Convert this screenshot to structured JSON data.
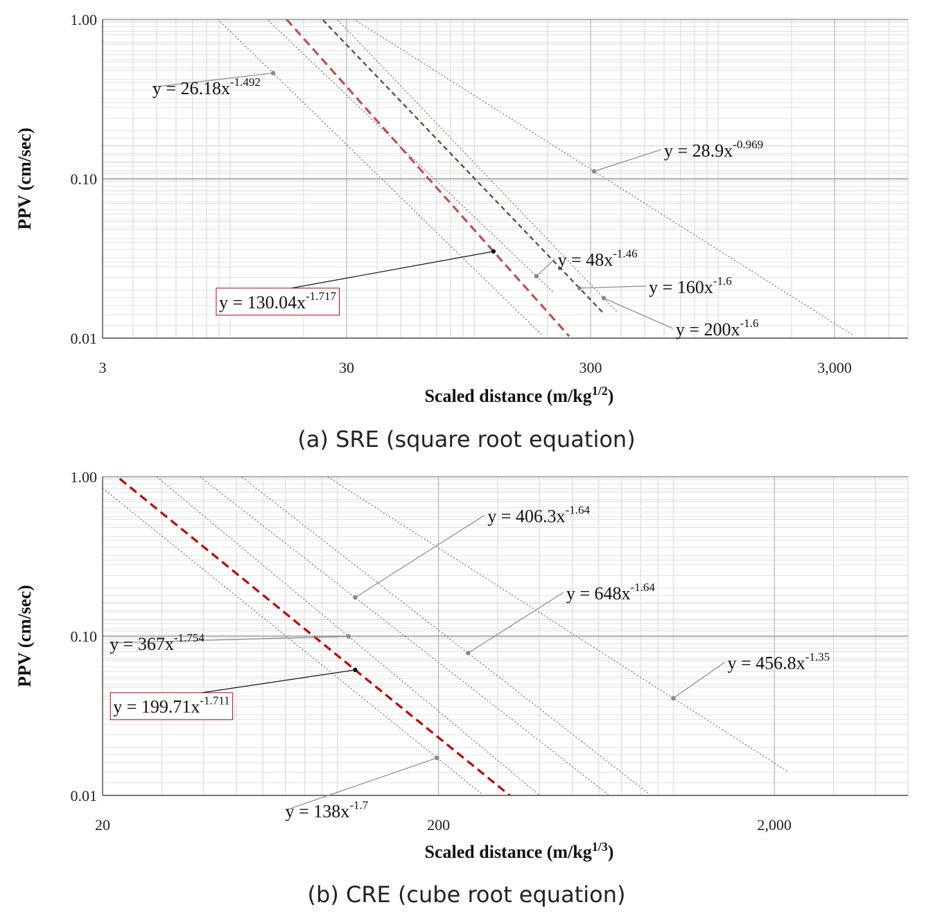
{
  "chart_data": [
    {
      "type": "line",
      "x_scale": "log",
      "y_scale": "log",
      "xlabel_main": "Scaled distance  (m/kg",
      "xlabel_exp": "1/2",
      "xlabel_end": ")",
      "ylabel": "PPV  (cm/sec)",
      "caption": "(a) SRE (square root equation)",
      "xlim": [
        3,
        6000
      ],
      "ylim": [
        0.01,
        1.0
      ],
      "x_ticks": [
        3,
        30,
        300,
        3000
      ],
      "x_tick_labels": [
        "3",
        "30",
        "300",
        "3,000"
      ],
      "y_ticks": [
        0.01,
        0.1,
        1.0
      ],
      "y_tick_labels": [
        "0.01",
        "0.10",
        "1.00"
      ],
      "series": [
        {
          "equation": "y = 26.18x",
          "exponent": "-1.492",
          "a": 26.18,
          "b": -1.492,
          "x_range": [
            8.9,
            190
          ],
          "marker_x": 15,
          "label_x": 4.8,
          "label_y": 0.34,
          "highlight": false
        },
        {
          "equation": "y = 130.04x",
          "exponent": "-1.717",
          "a": 130.04,
          "b": -1.717,
          "x_range": [
            17,
            245
          ],
          "marker_x": 120,
          "label_x": 9,
          "label_y": 0.0154,
          "highlight": true
        },
        {
          "equation": "y = 48x",
          "exponent": "-1.46",
          "a": 48,
          "b": -1.46,
          "x_range": [
            14,
            210
          ],
          "marker_x": 180,
          "label_x": 220,
          "label_y": 0.0285,
          "highlight": false
        },
        {
          "equation": "y = 160x",
          "exponent": "-1.6",
          "a": 160,
          "b": -1.6,
          "x_range": [
            24,
            340
          ],
          "marker_x": 270,
          "label_x": 520,
          "label_y": 0.0192,
          "highlight": false,
          "dashed_dark": true
        },
        {
          "equation": "y = 200x",
          "exponent": "-1.6",
          "a": 200,
          "b": -1.6,
          "x_range": [
            27,
            385
          ],
          "marker_x": 340,
          "label_x": 670,
          "label_y": 0.0104,
          "highlight": false
        },
        {
          "equation": "y = 28.9x",
          "exponent": "-0.969",
          "a": 28.9,
          "b": -0.969,
          "x_range": [
            32,
            3600
          ],
          "marker_x": 310,
          "label_x": 600,
          "label_y": 0.138,
          "highlight": false
        }
      ]
    },
    {
      "type": "line",
      "x_scale": "log",
      "y_scale": "log",
      "xlabel_main": "Scaled distance  (m/kg",
      "xlabel_exp": "1/3",
      "xlabel_end": ")",
      "ylabel": "PPV  (cm/sec)",
      "caption": "(b) CRE (cube root equation)",
      "xlim": [
        20,
        5000
      ],
      "ylim": [
        0.01,
        1.0
      ],
      "x_ticks": [
        20,
        200,
        2000
      ],
      "x_tick_labels": [
        "20",
        "200",
        "2,000"
      ],
      "y_ticks": [
        0.01,
        0.1,
        1.0
      ],
      "y_tick_labels": [
        "0.01",
        "0.10",
        "1.00"
      ],
      "series": [
        {
          "equation": "y = 138x",
          "exponent": "-1.7",
          "a": 138,
          "b": -1.7,
          "x_range": [
            20,
            270
          ],
          "marker_x": 198,
          "label_x": 70,
          "label_y": 0.0073,
          "highlight": false
        },
        {
          "equation": "y = 199.71x",
          "exponent": "-1.711",
          "a": 199.71,
          "b": -1.711,
          "x_range": [
            22.5,
            330
          ],
          "marker_x": 113,
          "label_x": 21.5,
          "label_y": 0.033,
          "highlight": true
        },
        {
          "equation": "y = 367x",
          "exponent": "-1.754",
          "a": 367,
          "b": -1.754,
          "x_range": [
            29,
            405
          ],
          "marker_x": 108,
          "label_x": 21,
          "label_y": 0.082,
          "highlight": false
        },
        {
          "equation": "y = 406.3x",
          "exponent": "-1.64",
          "a": 406.3,
          "b": -1.64,
          "x_range": [
            39,
            640
          ],
          "marker_x": 113,
          "label_x": 280,
          "label_y": 0.52,
          "highlight": false
        },
        {
          "equation": "y = 648x",
          "exponent": "-1.64",
          "a": 648,
          "b": -1.64,
          "x_range": [
            52,
            850
          ],
          "marker_x": 245,
          "label_x": 480,
          "label_y": 0.17,
          "highlight": false
        },
        {
          "equation": "y = 456.8x",
          "exponent": "-1.35",
          "a": 456.8,
          "b": -1.35,
          "x_range": [
            90,
            2200
          ],
          "marker_x": 1000,
          "label_x": 1450,
          "label_y": 0.062,
          "highlight": false
        }
      ]
    }
  ]
}
